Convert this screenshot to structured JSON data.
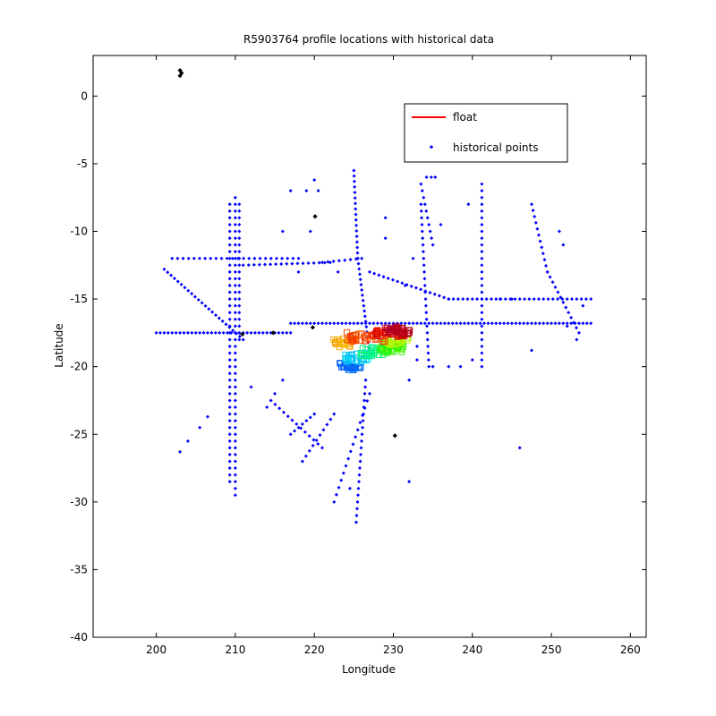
{
  "chart_data": {
    "type": "scatter",
    "title": "R5903764 profile locations with historical data",
    "xlabel": "Longitude",
    "ylabel": "Latitude",
    "xlim": [
      192,
      262
    ],
    "ylim": [
      -40,
      3
    ],
    "xticks": [
      200,
      210,
      220,
      230,
      240,
      250,
      260
    ],
    "yticks": [
      0,
      -5,
      -10,
      -15,
      -20,
      -25,
      -30,
      -35,
      -40
    ],
    "grid": false,
    "legend": {
      "placement": "top-right",
      "entries": [
        "float",
        "historical points"
      ]
    },
    "colors": {
      "float": "#ff0000",
      "historical": "#0000ff",
      "marker_black": "#000000",
      "axis": "#000000"
    },
    "series": [
      {
        "name": "historical points",
        "color": "#0000ff",
        "segments": [
          {
            "from": [
              210,
              -7.5
            ],
            "to": [
              210,
              -29.5
            ],
            "step": 0.5
          },
          {
            "from": [
              209.3,
              -8
            ],
            "to": [
              209.3,
              -28.5
            ],
            "step": 0.5
          },
          {
            "from": [
              210.5,
              -8
            ],
            "to": [
              210.5,
              -18
            ],
            "step": 0.5
          },
          {
            "from": [
              200,
              -17.5
            ],
            "to": [
              217,
              -17.5
            ],
            "step": 0.5
          },
          {
            "from": [
              217,
              -16.8
            ],
            "to": [
              255,
              -16.8
            ],
            "step": 0.5
          },
          {
            "from": [
              202,
              -12
            ],
            "to": [
              218,
              -12
            ],
            "step": 0.7
          },
          {
            "from": [
              201,
              -12.8
            ],
            "to": [
              211,
              -18
            ],
            "step": 0.5
          },
          {
            "from": [
              211,
              -12.5
            ],
            "to": [
              222,
              -12.3
            ],
            "step": 0.7
          },
          {
            "from": [
              221,
              -12.3
            ],
            "to": [
              226,
              -12
            ],
            "step": 0.7
          },
          {
            "from": [
              227,
              -13
            ],
            "to": [
              237,
              -15
            ],
            "step": 0.6
          },
          {
            "from": [
              237,
              -15
            ],
            "to": [
              255,
              -15
            ],
            "step": 0.6
          },
          {
            "from": [
              225,
              -5.5
            ],
            "to": [
              225.5,
              -12
            ],
            "step": 0.4
          },
          {
            "from": [
              225.5,
              -12
            ],
            "to": [
              227,
              -19
            ],
            "step": 0.4
          },
          {
            "from": [
              226.5,
              -21
            ],
            "to": [
              225.3,
              -31.5
            ],
            "step": 0.5
          },
          {
            "from": [
              233.5,
              -6.5
            ],
            "to": [
              235,
              -11
            ],
            "step": 0.5
          },
          {
            "from": [
              233.5,
              -8
            ],
            "to": [
              234.5,
              -20
            ],
            "step": 0.5
          },
          {
            "from": [
              241.2,
              -6.5
            ],
            "to": [
              241.2,
              -20
            ],
            "step": 0.5
          },
          {
            "from": [
              247.5,
              -8
            ],
            "to": [
              249.5,
              -13
            ],
            "step": 0.5
          },
          {
            "from": [
              249.5,
              -13
            ],
            "to": [
              253.5,
              -17.5
            ],
            "step": 0.5
          },
          {
            "from": [
              227,
              -22
            ],
            "to": [
              222.5,
              -30
            ],
            "step": 0.6
          },
          {
            "from": [
              214.5,
              -22.5
            ],
            "to": [
              221,
              -26
            ],
            "step": 0.6
          },
          {
            "from": [
              222.5,
              -23.5
            ],
            "to": [
              218.5,
              -27
            ],
            "step": 0.6
          },
          {
            "from": [
              217,
              -25
            ],
            "to": [
              220,
              -23.5
            ],
            "step": 0.6
          }
        ],
        "points": [
          [
            203,
            -26.3
          ],
          [
            204,
            -25.5
          ],
          [
            205.5,
            -24.5
          ],
          [
            206.5,
            -23.7
          ],
          [
            212,
            -21.5
          ],
          [
            214,
            -23
          ],
          [
            215,
            -22
          ],
          [
            216,
            -21
          ],
          [
            218,
            -13
          ],
          [
            219,
            -7
          ],
          [
            219.5,
            -10
          ],
          [
            220,
            -6.2
          ],
          [
            220.5,
            -7
          ],
          [
            216,
            -10
          ],
          [
            217,
            -7
          ],
          [
            223,
            -13
          ],
          [
            224.5,
            -29
          ],
          [
            232,
            -21
          ],
          [
            233,
            -19.5
          ],
          [
            232,
            -28.5
          ],
          [
            231.5,
            -14
          ],
          [
            232.5,
            -12
          ],
          [
            235,
            -20
          ],
          [
            237,
            -20
          ],
          [
            238.5,
            -20
          ],
          [
            239.5,
            -8
          ],
          [
            240,
            -19.5
          ],
          [
            233,
            -18.5
          ],
          [
            236,
            -9.5
          ],
          [
            234.2,
            -6
          ],
          [
            234.8,
            -6
          ],
          [
            235.3,
            -6
          ],
          [
            229,
            -9
          ],
          [
            229,
            -10.5
          ],
          [
            225.5,
            -20
          ],
          [
            243.5,
            -15
          ],
          [
            245,
            -15
          ],
          [
            247.5,
            -18.8
          ],
          [
            246,
            -26
          ],
          [
            251,
            -10
          ],
          [
            251.5,
            -11
          ],
          [
            252,
            -17
          ],
          [
            254,
            -15.5
          ],
          [
            253.2,
            -18
          ]
        ]
      },
      {
        "name": "black markers",
        "color": "#000000",
        "points": [
          [
            203,
            1.5
          ],
          [
            203,
            1.9
          ],
          [
            203.2,
            1.7
          ],
          [
            220.1,
            -8.9
          ],
          [
            210.9,
            -17.6
          ],
          [
            214.8,
            -17.5
          ],
          [
            230.2,
            -25.1
          ],
          [
            219.8,
            -17.1
          ]
        ]
      },
      {
        "name": "float",
        "color": "#ff0000",
        "clusters": [
          {
            "center": [
              224.5,
              -20
            ],
            "spread": [
              1.4,
              0.3
            ],
            "count": 22,
            "hue": 0.6
          },
          {
            "center": [
              225.5,
              -19.3
            ],
            "spread": [
              1.6,
              0.35
            ],
            "count": 26,
            "hue": 0.53
          },
          {
            "center": [
              227.5,
              -18.9
            ],
            "spread": [
              1.8,
              0.35
            ],
            "count": 28,
            "hue": 0.42
          },
          {
            "center": [
              229.8,
              -18.6
            ],
            "spread": [
              1.6,
              0.4
            ],
            "count": 26,
            "hue": 0.3
          },
          {
            "center": [
              230.5,
              -18.1
            ],
            "spread": [
              1.4,
              0.3
            ],
            "count": 22,
            "hue": 0.22
          },
          {
            "center": [
              223.8,
              -18.2
            ],
            "spread": [
              1.4,
              0.35
            ],
            "count": 24,
            "hue": 0.12
          },
          {
            "center": [
              226.5,
              -17.8
            ],
            "spread": [
              2.4,
              0.35
            ],
            "count": 40,
            "hue": 0.05
          },
          {
            "center": [
              229.5,
              -17.5
            ],
            "spread": [
              2.0,
              0.3
            ],
            "count": 36,
            "hue": 0.01
          },
          {
            "center": [
              230.5,
              -17.3
            ],
            "spread": [
              1.6,
              0.3
            ],
            "count": 30,
            "hue": 0.97
          }
        ]
      }
    ]
  }
}
